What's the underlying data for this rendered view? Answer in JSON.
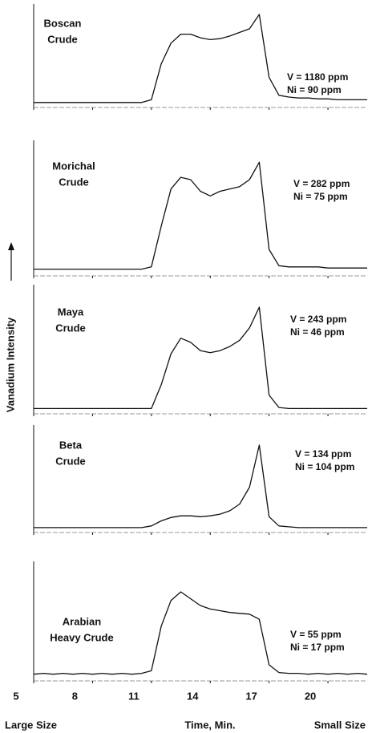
{
  "chart_data": {
    "type": "line",
    "ylabel": "Vanadium Intensity",
    "xlabel": "Time, Min.",
    "annotations": [
      "Large Size",
      "Small Size"
    ],
    "xlim": [
      5,
      22
    ],
    "xticks": [
      5,
      8,
      11,
      14,
      17,
      20
    ],
    "ylim": [
      0,
      100
    ],
    "color": "#111111",
    "x": [
      5,
      5.5,
      6,
      6.5,
      7,
      7.5,
      8,
      8.5,
      9,
      9.5,
      10,
      10.5,
      11,
      11.5,
      12,
      12.5,
      13,
      13.5,
      14,
      14.5,
      15,
      15.5,
      16,
      16.5,
      17,
      17.5,
      18,
      18.5,
      19,
      19.5,
      20,
      20.5,
      21,
      21.5,
      22
    ],
    "series": [
      {
        "label": [
          "Boscan",
          "Crude"
        ],
        "annotations": [
          "V = 1180 ppm",
          "Ni = 90 ppm"
        ],
        "values": [
          2,
          2,
          2,
          2,
          2,
          2,
          2,
          2,
          2,
          2,
          2,
          2,
          5,
          45,
          68,
          78,
          78,
          74,
          72,
          73,
          76,
          80,
          84,
          100,
          30,
          10,
          8,
          7,
          7,
          6,
          6,
          5,
          5,
          5,
          5
        ]
      },
      {
        "label": [
          "Morichal",
          "Crude"
        ],
        "annotations": [
          "V = 282 ppm",
          "Ni = 75 ppm"
        ],
        "values": [
          3,
          3,
          3,
          3,
          3,
          3,
          3,
          3,
          3,
          3,
          3,
          3,
          5,
          40,
          72,
          82,
          80,
          70,
          66,
          70,
          72,
          74,
          80,
          95,
          20,
          6,
          5,
          5,
          5,
          5,
          4,
          4,
          4,
          4,
          4
        ]
      },
      {
        "label": [
          "Maya",
          "Crude"
        ],
        "annotations": [
          "V = 243 ppm",
          "Ni = 46 ppm"
        ],
        "values": [
          2,
          2,
          2,
          2,
          2,
          2,
          2,
          2,
          2,
          2,
          2,
          2,
          2,
          25,
          55,
          70,
          66,
          58,
          56,
          58,
          62,
          68,
          80,
          100,
          15,
          3,
          2,
          2,
          2,
          2,
          2,
          2,
          2,
          2,
          2
        ]
      },
      {
        "label": [
          "Beta",
          "Crude"
        ],
        "annotations": [
          "V = 134 ppm",
          "Ni = 104 ppm"
        ],
        "values": [
          2,
          2,
          2,
          2,
          2,
          2,
          2,
          2,
          2,
          2,
          2,
          2,
          4,
          10,
          14,
          16,
          16,
          15,
          16,
          18,
          22,
          30,
          50,
          100,
          15,
          4,
          3,
          2,
          2,
          2,
          2,
          2,
          2,
          2,
          2
        ]
      },
      {
        "label": [
          "Arabian",
          "Heavy Crude"
        ],
        "annotations": [
          "V = 55 ppm",
          "Ni = 17 ppm"
        ],
        "values": [
          4,
          5,
          4,
          5,
          4,
          5,
          4,
          5,
          4,
          5,
          4,
          5,
          8,
          60,
          90,
          100,
          92,
          84,
          80,
          78,
          76,
          75,
          74,
          68,
          15,
          6,
          5,
          5,
          4,
          5,
          4,
          5,
          4,
          5,
          4
        ]
      }
    ]
  }
}
